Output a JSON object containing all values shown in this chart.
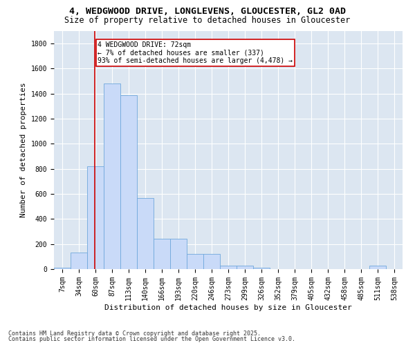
{
  "title_line1": "4, WEDGWOOD DRIVE, LONGLEVENS, GLOUCESTER, GL2 0AD",
  "title_line2": "Size of property relative to detached houses in Gloucester",
  "xlabel": "Distribution of detached houses by size in Gloucester",
  "ylabel": "Number of detached properties",
  "categories": [
    "7sqm",
    "34sqm",
    "60sqm",
    "87sqm",
    "113sqm",
    "140sqm",
    "166sqm",
    "193sqm",
    "220sqm",
    "246sqm",
    "273sqm",
    "299sqm",
    "326sqm",
    "352sqm",
    "379sqm",
    "405sqm",
    "432sqm",
    "458sqm",
    "485sqm",
    "511sqm",
    "538sqm"
  ],
  "values": [
    10,
    130,
    820,
    1480,
    1390,
    570,
    245,
    245,
    120,
    120,
    30,
    25,
    10,
    0,
    0,
    0,
    0,
    0,
    0,
    25,
    0
  ],
  "bar_color": "#c9daf8",
  "bar_edge_color": "#6fa8dc",
  "subject_line_color": "#cc0000",
  "annotation_text": "4 WEDGWOOD DRIVE: 72sqm\n← 7% of detached houses are smaller (337)\n93% of semi-detached houses are larger (4,478) →",
  "annotation_box_color": "#ffffff",
  "annotation_box_edge": "#cc0000",
  "ylim": [
    0,
    1900
  ],
  "yticks": [
    0,
    200,
    400,
    600,
    800,
    1000,
    1200,
    1400,
    1600,
    1800
  ],
  "background_color": "#dce6f1",
  "grid_color": "#ffffff",
  "footer_line1": "Contains HM Land Registry data © Crown copyright and database right 2025.",
  "footer_line2": "Contains public sector information licensed under the Open Government Licence v3.0.",
  "title_fontsize": 9.5,
  "subtitle_fontsize": 8.5,
  "axis_label_fontsize": 8,
  "tick_fontsize": 7,
  "annotation_fontsize": 7,
  "footer_fontsize": 6
}
